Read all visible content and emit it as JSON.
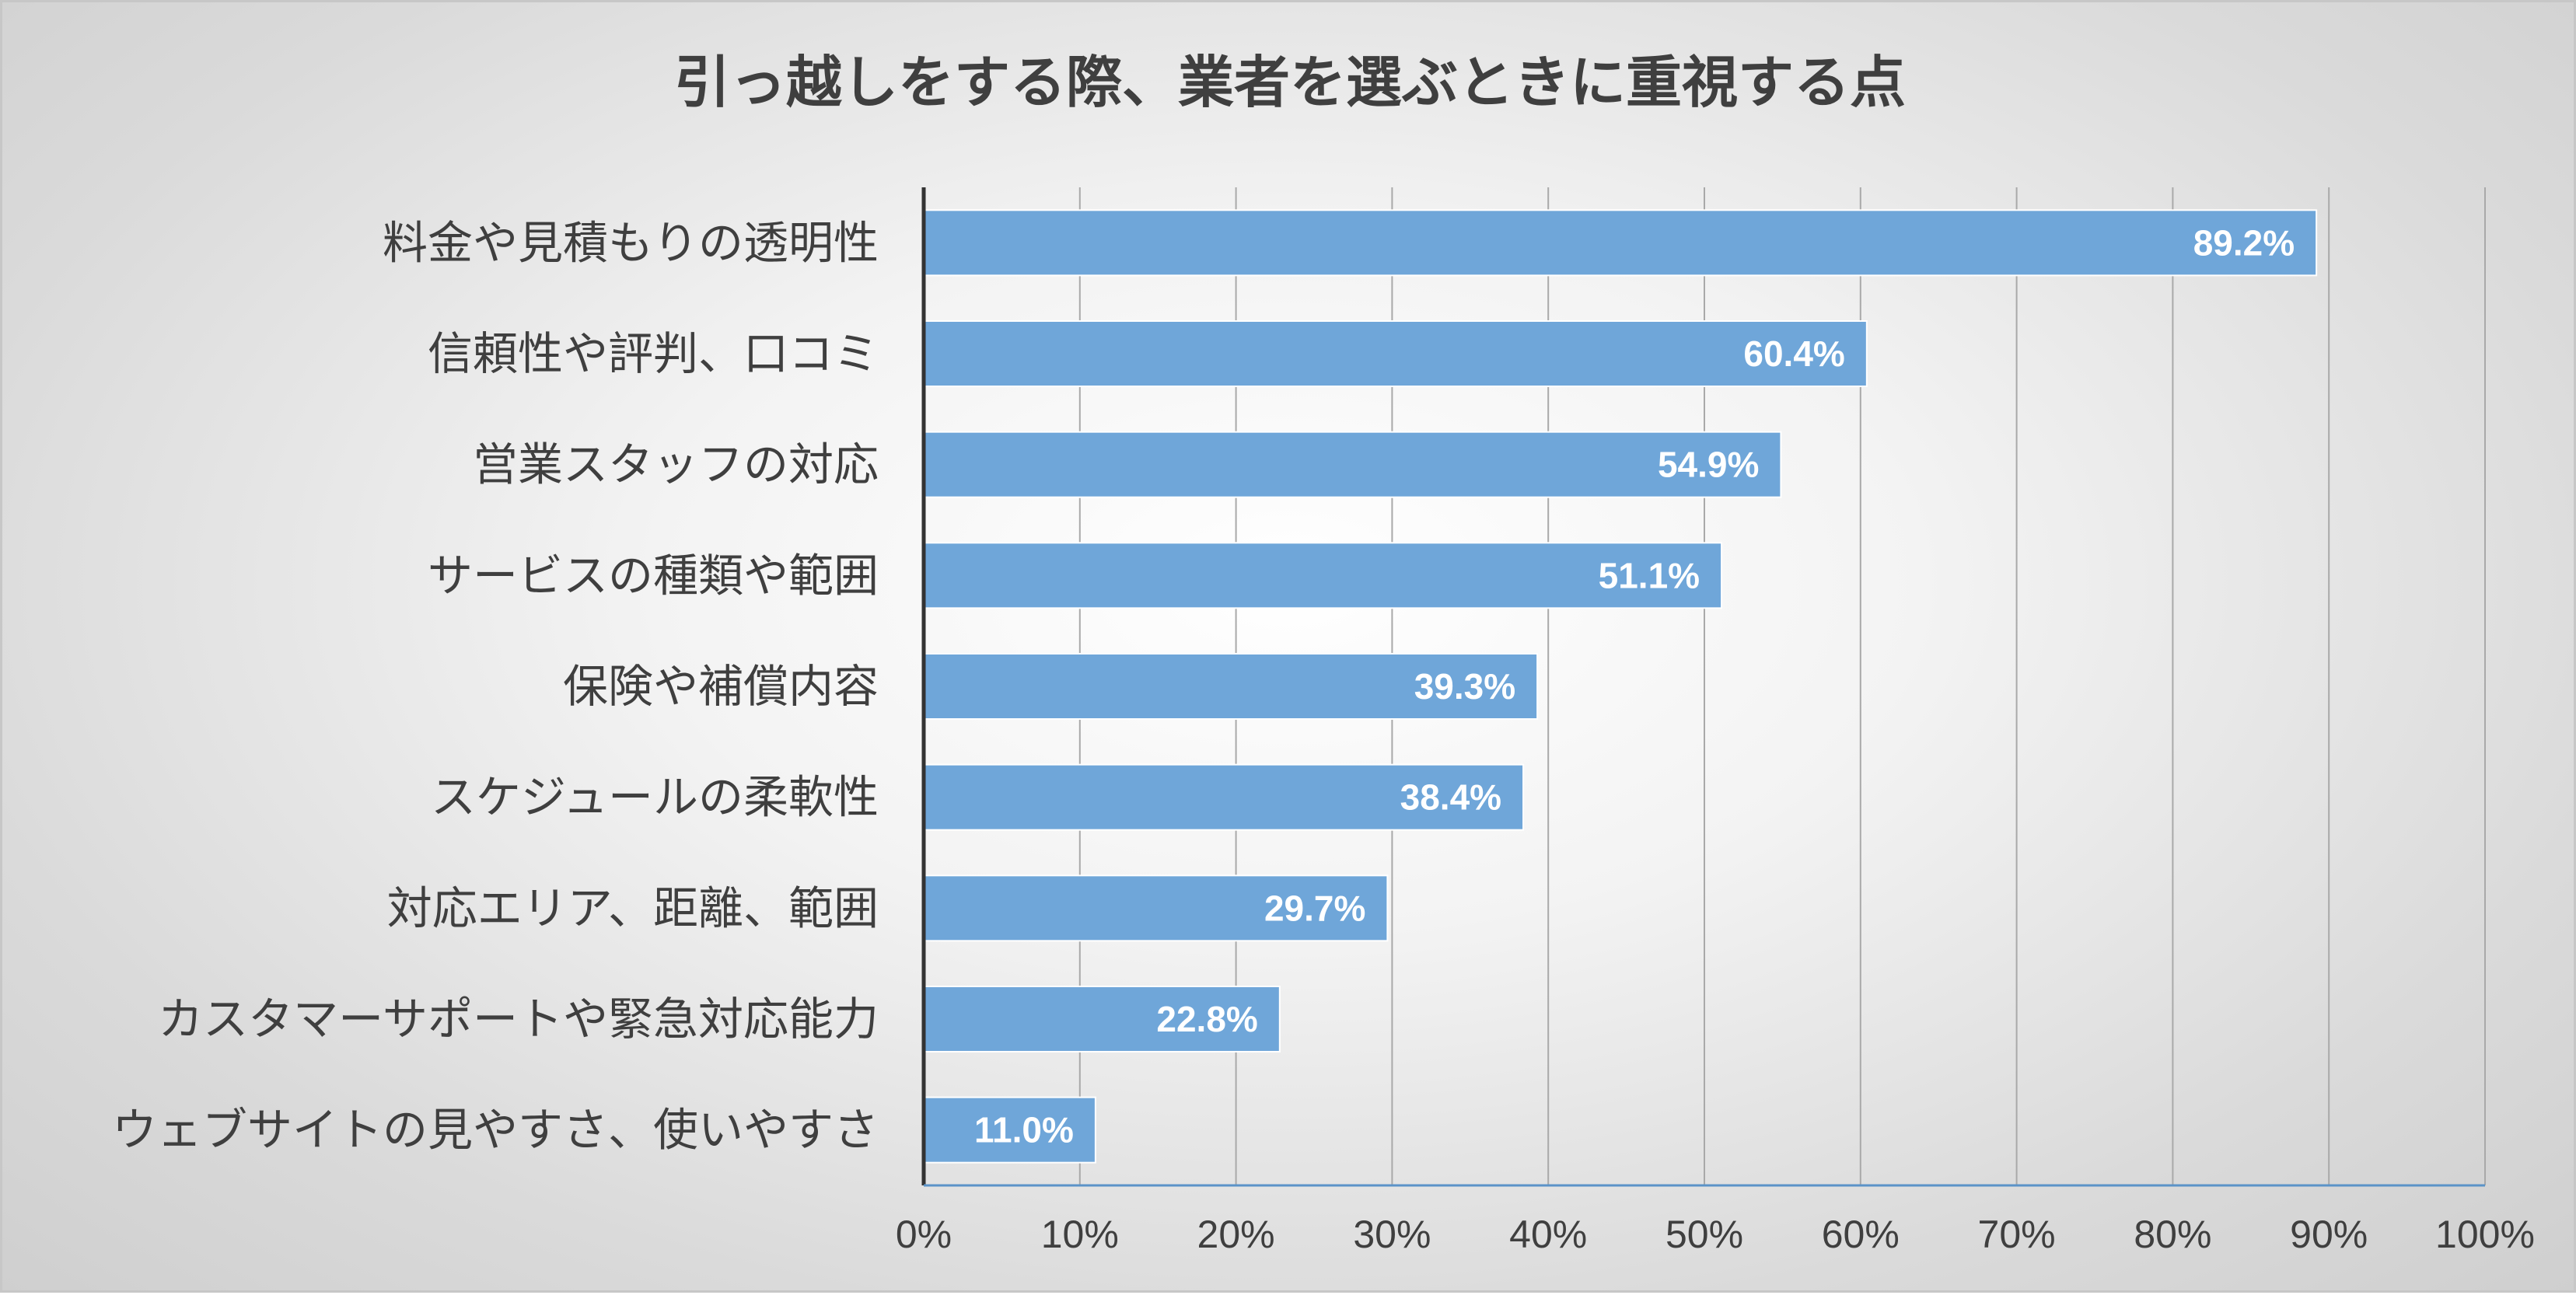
{
  "chart_data": {
    "type": "bar",
    "orientation": "horizontal",
    "title": "引っ越しをする際、業者を選ぶときに重視する点",
    "categories": [
      "料金や見積もりの透明性",
      "信頼性や評判、口コミ",
      "営業スタッフの対応",
      "サービスの種類や範囲",
      "保険や補償内容",
      "スケジュールの柔軟性",
      "対応エリア、距離、範囲",
      "カスタマーサポートや緊急対応能力",
      "ウェブサイトの見やすさ、使いやすさ"
    ],
    "values": [
      89.2,
      60.4,
      54.9,
      51.1,
      39.3,
      38.4,
      29.7,
      22.8,
      11.0
    ],
    "data_labels": [
      "89.2%",
      "60.4%",
      "54.9%",
      "51.1%",
      "39.3%",
      "38.4%",
      "29.7%",
      "22.8%",
      "11.0%"
    ],
    "xlim": [
      0,
      100
    ],
    "x_ticks": [
      0,
      10,
      20,
      30,
      40,
      50,
      60,
      70,
      80,
      90,
      100
    ],
    "x_tick_labels": [
      "0%",
      "10%",
      "20%",
      "30%",
      "40%",
      "50%",
      "60%",
      "70%",
      "80%",
      "90%",
      "100%"
    ],
    "xlabel": "",
    "ylabel": "",
    "grid": "vertical",
    "legend": "none",
    "colors": {
      "bar": "#6fa6d9",
      "bar_edge": "#5b93c8",
      "gridline": "#a9a9a9",
      "axis": "#333333",
      "text": "#3f3f3f",
      "data_label": "#ffffff"
    }
  }
}
